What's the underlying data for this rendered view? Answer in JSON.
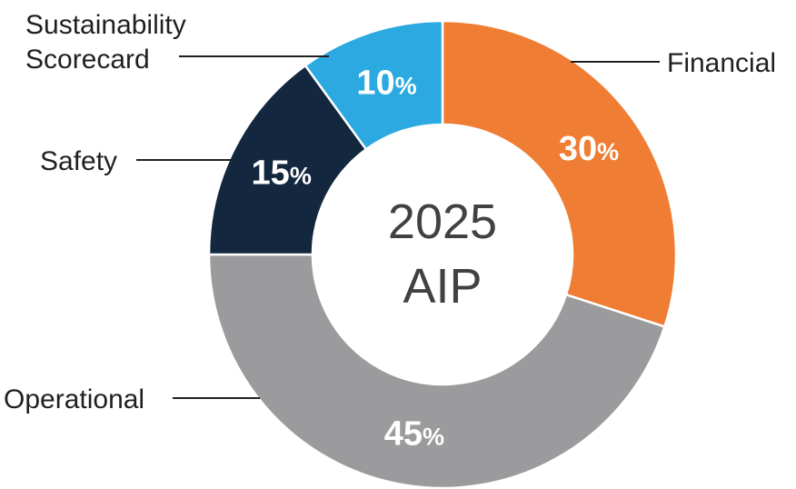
{
  "chart_data": {
    "type": "donut",
    "title": "2025 AIP",
    "center_line1": "2025",
    "center_line2": "AIP",
    "unit": "%",
    "start_angle_deg": 0,
    "direction": "clockwise",
    "legend_position": "callouts",
    "segments": [
      {
        "id": "financial",
        "label": "Financial",
        "value": 30,
        "color": "#EF7D33"
      },
      {
        "id": "operational",
        "label": "Operational",
        "value": 45,
        "color": "#9B9B9D"
      },
      {
        "id": "safety",
        "label": "Safety",
        "value": 15,
        "color": "#13273F"
      },
      {
        "id": "sustainability-scorecard",
        "label": "Sustainability Scorecard",
        "value": 10,
        "color": "#2BA9E0"
      }
    ]
  },
  "callouts": {
    "sustainability_line1": "Sustainability",
    "sustainability_line2": "Scorecard",
    "financial": "Financial",
    "safety": "Safety",
    "operational": "Operational"
  }
}
